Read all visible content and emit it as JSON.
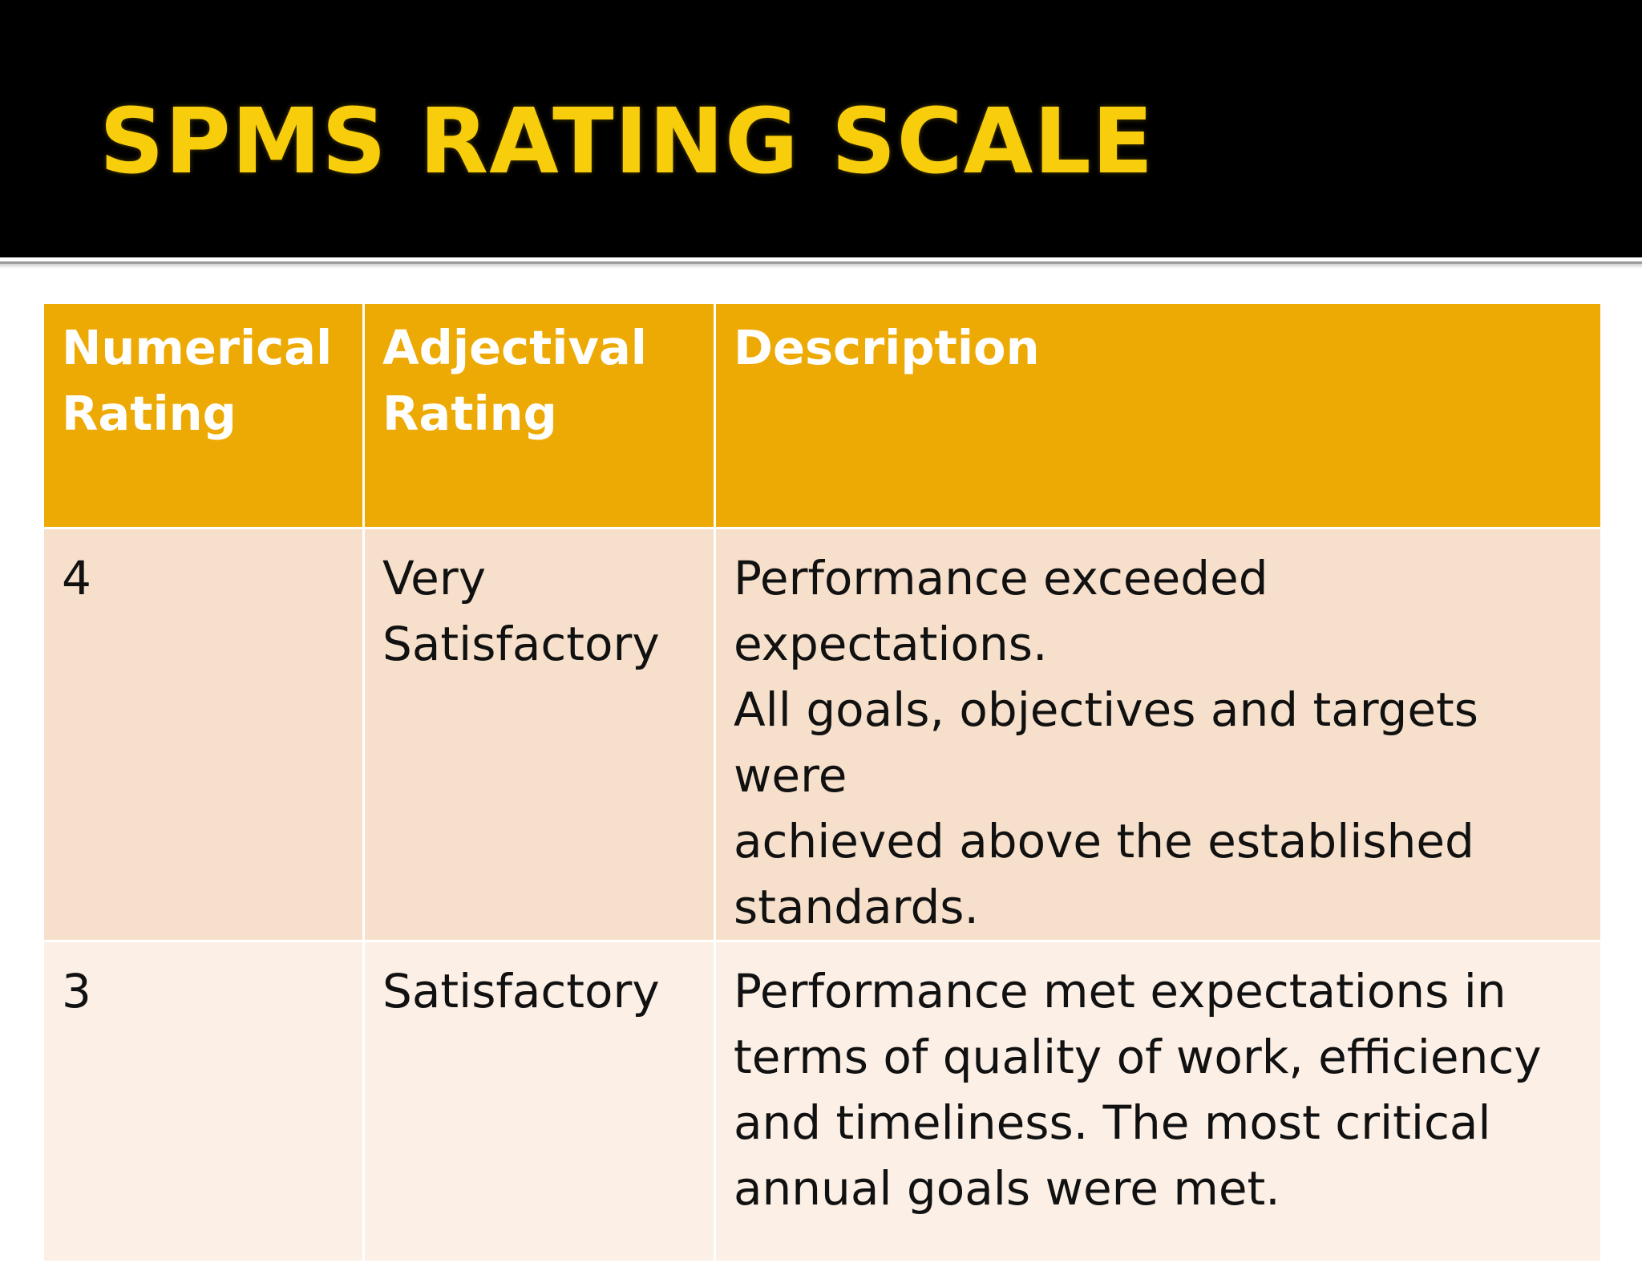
{
  "slide": {
    "title": "SPMS RATING SCALE"
  },
  "colors": {
    "title_bar": "#000000",
    "title_text": "#f7cd0c",
    "header_fill": "#eeaa04",
    "header_text": "#ffffff",
    "row_4_fill": "#f7e0cb",
    "row_3_fill": "#fbefe6",
    "body_text": "#111111"
  },
  "table": {
    "headers": [
      "Numerical\nRating",
      "Adjectival\nRating",
      "Description"
    ],
    "rows": [
      {
        "numerical": "4",
        "adjectival": "Very\nSatisfactory",
        "description": "Performance exceeded expectations.\nAll goals, objectives and targets were\nachieved above the established\nstandards."
      },
      {
        "numerical": "3",
        "adjectival": "Satisfactory",
        "description": "Performance met expectations in\nterms of quality of work, efficiency\nand timeliness. The most critical\nannual goals were met."
      }
    ]
  }
}
